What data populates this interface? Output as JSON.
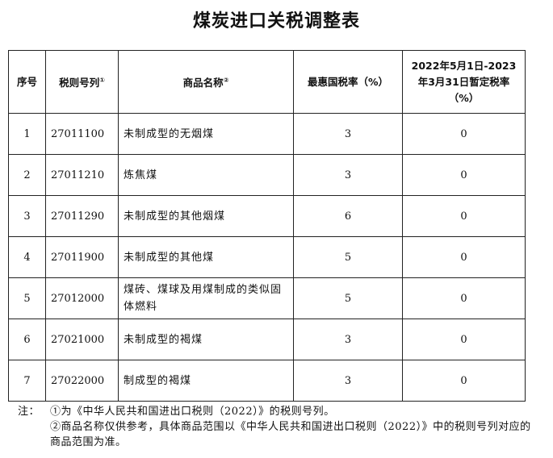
{
  "title": "煤炭进口关税调整表",
  "headers": {
    "seq": "序号",
    "code": "税则号列",
    "code_note": "①",
    "name": "商品名称",
    "name_note": "②",
    "mfn": "最惠国税率（%）",
    "provisional": "2022年5月1日-2023年3月31日暂定税率（%）"
  },
  "rows": [
    {
      "seq": "1",
      "code": "27011100",
      "name": "未制成型的无烟煤",
      "mfn": "3",
      "provisional": "0"
    },
    {
      "seq": "2",
      "code": "27011210",
      "name": "炼焦煤",
      "mfn": "3",
      "provisional": "0"
    },
    {
      "seq": "3",
      "code": "27011290",
      "name": "未制成型的其他烟煤",
      "mfn": "6",
      "provisional": "0"
    },
    {
      "seq": "4",
      "code": "27011900",
      "name": "未制成型的其他煤",
      "mfn": "5",
      "provisional": "0"
    },
    {
      "seq": "5",
      "code": "27012000",
      "name": "煤砖、煤球及用煤制成的类似固体燃料",
      "mfn": "5",
      "provisional": "0"
    },
    {
      "seq": "6",
      "code": "27021000",
      "name": "未制成型的褐煤",
      "mfn": "3",
      "provisional": "0"
    },
    {
      "seq": "7",
      "code": "27022000",
      "name": "制成型的褐煤",
      "mfn": "3",
      "provisional": "0"
    }
  ],
  "notes": {
    "label": "注：",
    "items": [
      "①为《中华人民共和国进出口税则（2022）》的税则号列。",
      "②商品名称仅供参考，具体商品范围以《中华人民共和国进出口税则（2022）》中的税则号列对应的商品范围为准。"
    ]
  }
}
